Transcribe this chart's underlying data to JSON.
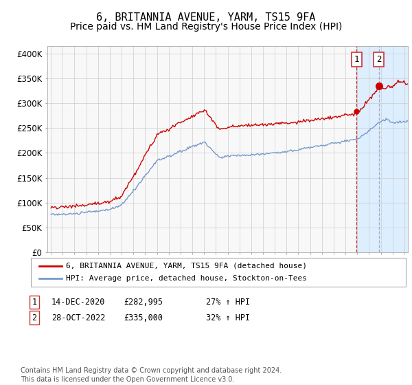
{
  "title": "6, BRITANNIA AVENUE, YARM, TS15 9FA",
  "subtitle": "Price paid vs. HM Land Registry's House Price Index (HPI)",
  "ylabel_ticks": [
    "£0",
    "£50K",
    "£100K",
    "£150K",
    "£200K",
    "£250K",
    "£300K",
    "£350K",
    "£400K"
  ],
  "ytick_vals": [
    0,
    50000,
    100000,
    150000,
    200000,
    250000,
    300000,
    350000,
    400000
  ],
  "ylim": [
    0,
    415000
  ],
  "xlim_start": 1995.0,
  "xlim_end": 2025.3,
  "red_color": "#cc0000",
  "blue_color": "#7799cc",
  "highlight_bg": "#ddeeff",
  "grid_color": "#cccccc",
  "bg_color": "#f8f8f8",
  "legend_label_red": "6, BRITANNIA AVENUE, YARM, TS15 9FA (detached house)",
  "legend_label_blue": "HPI: Average price, detached house, Stockton-on-Tees",
  "sale1_date_x": 2020.95,
  "sale1_price": 282995,
  "sale2_date_x": 2022.83,
  "sale2_price": 335000,
  "table_row1": [
    "1",
    "14-DEC-2020",
    "£282,995",
    "27% ↑ HPI"
  ],
  "table_row2": [
    "2",
    "28-OCT-2022",
    "£335,000",
    "32% ↑ HPI"
  ],
  "footer": "Contains HM Land Registry data © Crown copyright and database right 2024.\nThis data is licensed under the Open Government Licence v3.0.",
  "title_fontsize": 11,
  "subtitle_fontsize": 10,
  "tick_fontsize": 8.5
}
